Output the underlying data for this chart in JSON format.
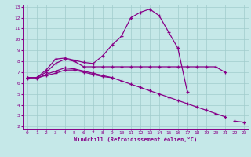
{
  "xlabel": "Windchill (Refroidissement éolien,°C)",
  "background_color": "#c5e8e8",
  "grid_color": "#a0cccc",
  "line_color": "#880088",
  "xlim": [
    -0.5,
    23.5
  ],
  "ylim": [
    1.8,
    13.2
  ],
  "xticks": [
    0,
    1,
    2,
    3,
    4,
    5,
    6,
    7,
    8,
    9,
    10,
    11,
    12,
    13,
    14,
    15,
    16,
    17,
    18,
    19,
    20,
    21,
    22,
    23
  ],
  "yticks": [
    2,
    3,
    4,
    5,
    6,
    7,
    8,
    9,
    10,
    11,
    12,
    13
  ],
  "series": {
    "line1_x": [
      0,
      1,
      2,
      3,
      4,
      5,
      6,
      7,
      8,
      9,
      10,
      11,
      12,
      13,
      14,
      15,
      16,
      17,
      18,
      19,
      20,
      21,
      22,
      23
    ],
    "line1_y": [
      6.5,
      6.5,
      7.2,
      8.2,
      8.3,
      8.1,
      7.9,
      7.8,
      8.5,
      9.5,
      10.3,
      12.0,
      12.5,
      12.8,
      12.2,
      10.7,
      9.2,
      5.2,
      null,
      null,
      null,
      null,
      2.5,
      2.4
    ],
    "line2_x": [
      0,
      1,
      2,
      3,
      4,
      5,
      6,
      7,
      8,
      9,
      10,
      11,
      12,
      13,
      14,
      15,
      16,
      17,
      18,
      19,
      20,
      21
    ],
    "line2_y": [
      6.5,
      6.5,
      7.0,
      7.8,
      8.2,
      8.0,
      7.5,
      7.5,
      7.5,
      7.5,
      7.5,
      7.5,
      7.5,
      7.5,
      7.5,
      7.5,
      7.5,
      7.5,
      7.5,
      7.5,
      7.5,
      7.0
    ],
    "line3_x": [
      0,
      1,
      2,
      3,
      4,
      5,
      6,
      7,
      8,
      9,
      10,
      11,
      12,
      13,
      14,
      15,
      16,
      17,
      18,
      19,
      20,
      21,
      22,
      23
    ],
    "line3_y": [
      6.4,
      6.4,
      6.8,
      7.1,
      7.4,
      7.3,
      7.1,
      6.9,
      6.7,
      6.5,
      6.2,
      5.9,
      5.6,
      5.3,
      5.0,
      4.7,
      4.4,
      4.1,
      3.8,
      3.5,
      3.2,
      2.9,
      null,
      null
    ],
    "line4_x": [
      0,
      1,
      2,
      3,
      4,
      5,
      6,
      7,
      8,
      9
    ],
    "line4_y": [
      6.5,
      6.5,
      6.7,
      6.9,
      7.2,
      7.2,
      7.0,
      6.8,
      6.6,
      6.5
    ]
  }
}
